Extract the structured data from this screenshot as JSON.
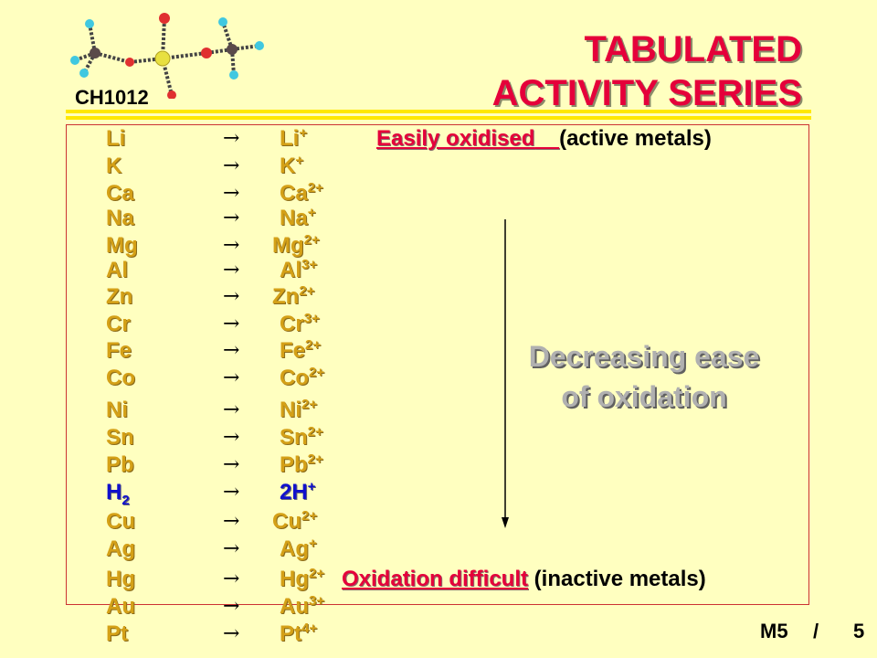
{
  "header": {
    "course": "CH1012",
    "title_line1": "TABULATED",
    "title_line2": "ACTIVITY SERIES"
  },
  "arrow_glyph": "→",
  "rows": [
    {
      "metal": "Li",
      "ion": "Li",
      "charge": "+"
    },
    {
      "metal": "K",
      "ion": "K",
      "charge": "+"
    },
    {
      "metal": "Ca",
      "ion": "Ca",
      "charge": "2+"
    },
    {
      "metal": "Na",
      "ion": "Na",
      "charge": "+"
    },
    {
      "metal": "Mg",
      "ion": "Mg",
      "charge": "2+"
    },
    {
      "metal": "Al",
      "ion": "Al",
      "charge": "3+"
    },
    {
      "metal": "Zn",
      "ion": "Zn",
      "charge": "2+"
    },
    {
      "metal": "Cr",
      "ion": "Cr",
      "charge": "3+"
    },
    {
      "metal": "Fe",
      "ion": "Fe",
      "charge": "2+"
    },
    {
      "metal": "Co",
      "ion": "Co",
      "charge": "2+"
    },
    {
      "metal": "Ni",
      "ion": "Ni",
      "charge": "2+"
    },
    {
      "metal": "Sn",
      "ion": "Sn",
      "charge": "2+"
    },
    {
      "metal": "Pb",
      "ion": "Pb",
      "charge": "2+"
    },
    {
      "metal": "H",
      "metal_sub": "2",
      "ion": "2H",
      "charge": "+"
    },
    {
      "metal": "Cu",
      "ion": "Cu",
      "charge": "2+"
    },
    {
      "metal": "Ag",
      "ion": "Ag",
      "charge": "+"
    },
    {
      "metal": "Hg",
      "ion": "Hg",
      "charge": "2+"
    },
    {
      "metal": "Au",
      "ion": "Au",
      "charge": "3+"
    },
    {
      "metal": "Pt",
      "ion": "Pt",
      "charge": "4+"
    }
  ],
  "notes": {
    "top_red": "Easily oxidised",
    "top_black": "(active metals)",
    "bottom_red": "Oxidation difficult",
    "bottom_black": "(inactive metals)"
  },
  "trend": {
    "line1": "Decreasing ease",
    "line2": "of oxidation"
  },
  "footer": {
    "module": "M5",
    "slash": "/",
    "page": "5"
  },
  "colors": {
    "background": "#FFFFC0",
    "title_red": "#E5003A",
    "metal_gold": "#D4A017",
    "hydrogen_blue": "#1010CC",
    "rule_yellow": "#FFE800",
    "panel_border": "#CC3333"
  }
}
